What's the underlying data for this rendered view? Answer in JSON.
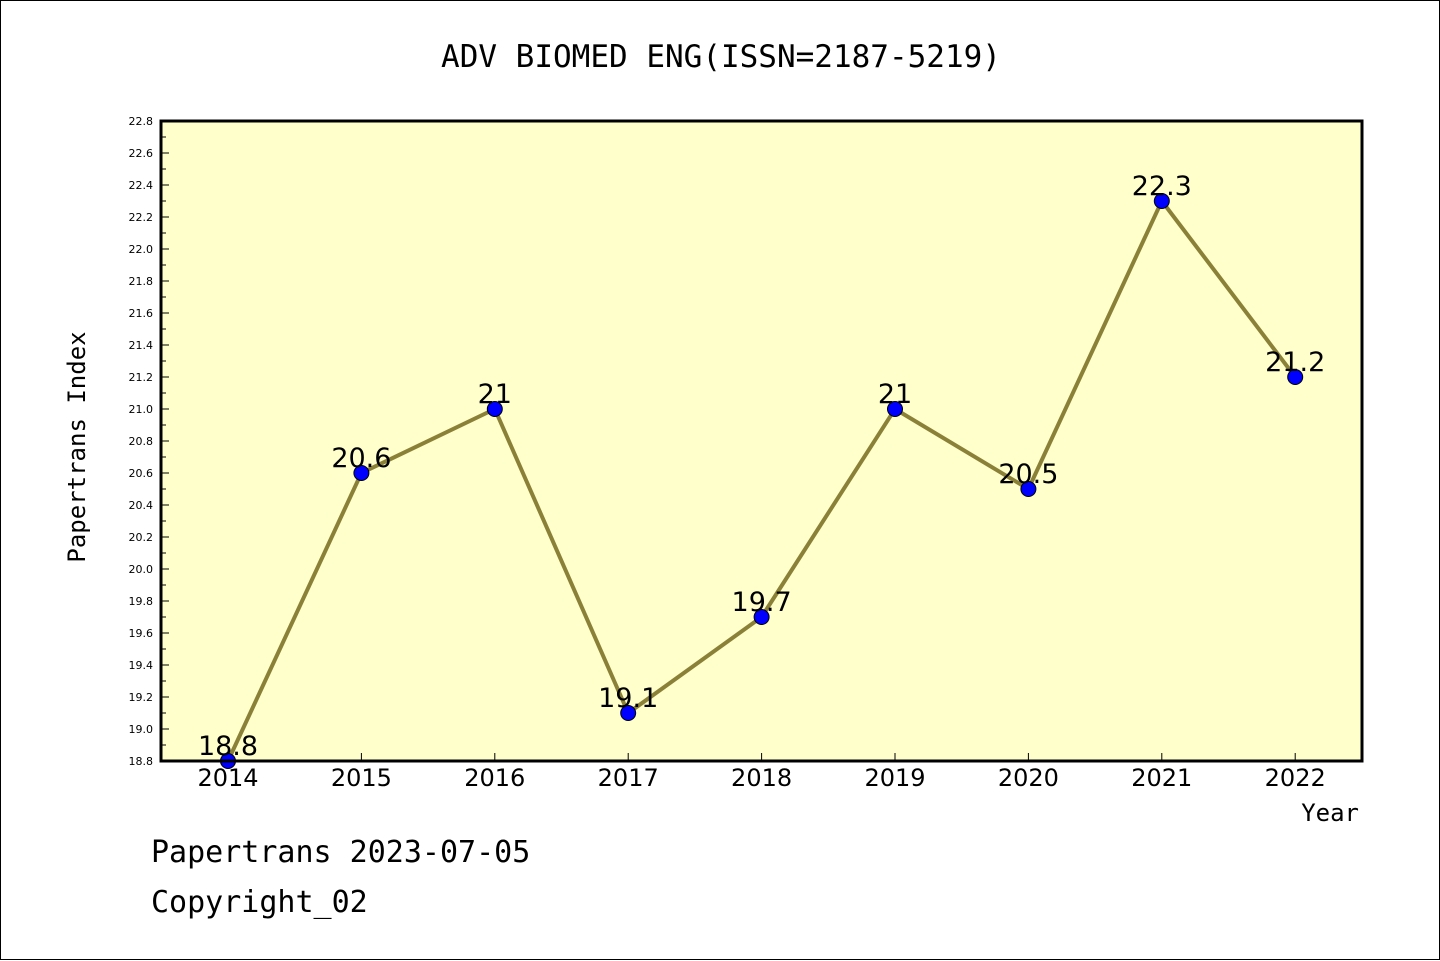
{
  "chart_data": {
    "type": "line",
    "title": "ADV BIOMED ENG(ISSN=2187-5219)",
    "xlabel": "Year",
    "ylabel": "Papertrans Index",
    "categories": [
      "2014",
      "2015",
      "2016",
      "2017",
      "2018",
      "2019",
      "2020",
      "2021",
      "2022"
    ],
    "series": [
      {
        "values": [
          18.8,
          20.6,
          21,
          19.1,
          19.7,
          21,
          20.5,
          22.3,
          21.2
        ]
      }
    ],
    "data_labels": [
      "18.8",
      "20.6",
      "21",
      "19.1",
      "19.7",
      "21",
      "20.5",
      "22.3",
      "21.2"
    ],
    "ylim": [
      18.8,
      22.8
    ],
    "yticks": [
      "18.8",
      "19.0",
      "19.2",
      "19.4",
      "19.6",
      "19.8",
      "20.0",
      "20.2",
      "20.4",
      "20.6",
      "20.8",
      "21.0",
      "21.2",
      "21.4",
      "21.6",
      "21.8",
      "22.0",
      "22.2",
      "22.4",
      "22.6",
      "22.8"
    ],
    "grid": false,
    "legend": "none",
    "colors": {
      "plot_background": "#FFFFCC",
      "line": "#8B8038",
      "marker": "#0000FF"
    }
  },
  "footer": {
    "line1": "Papertrans 2023-07-05",
    "line2": "Copyright_02"
  }
}
